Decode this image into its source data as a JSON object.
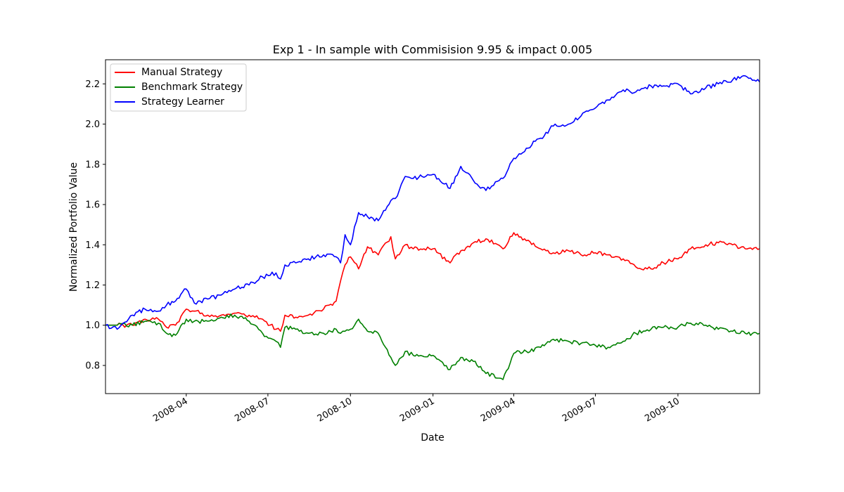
{
  "chart_data": {
    "type": "line",
    "title": "Exp 1 - In sample with Commisision 9.95 & impact 0.005",
    "xlabel": "Date",
    "ylabel": "Normalized Portfolio Value",
    "xlim": [
      "2008-01-02",
      "2009-12-31"
    ],
    "ylim": [
      0.66,
      2.32
    ],
    "yticks": [
      0.8,
      1.0,
      1.2,
      1.4,
      1.6,
      1.8,
      2.0,
      2.2
    ],
    "ytick_labels": [
      "0.8",
      "1.0",
      "1.2",
      "1.4",
      "1.6",
      "1.8",
      "2.0",
      "2.2"
    ],
    "xticks": [
      "2008-04-01",
      "2008-07-01",
      "2008-10-01",
      "2009-01-01",
      "2009-04-01",
      "2009-07-01",
      "2009-10-01"
    ],
    "xtick_labels": [
      "2008-04",
      "2008-07",
      "2008-10",
      "2009-01",
      "2009-04",
      "2009-07",
      "2009-10"
    ],
    "grid": false,
    "legend_position": "top-left",
    "series": [
      {
        "name": "Manual Strategy",
        "color": "#ff0000",
        "x": [
          "2008-01-02",
          "2008-01-15",
          "2008-02-01",
          "2008-02-15",
          "2008-03-01",
          "2008-03-10",
          "2008-03-20",
          "2008-04-01",
          "2008-04-10",
          "2008-04-25",
          "2008-05-10",
          "2008-05-25",
          "2008-06-10",
          "2008-06-25",
          "2008-07-10",
          "2008-07-15",
          "2008-07-20",
          "2008-08-01",
          "2008-08-15",
          "2008-09-01",
          "2008-09-15",
          "2008-09-20",
          "2008-09-25",
          "2008-10-01",
          "2008-10-10",
          "2008-10-20",
          "2008-11-01",
          "2008-11-15",
          "2008-11-20",
          "2008-12-01",
          "2008-12-10",
          "2009-01-01",
          "2009-01-20",
          "2009-02-01",
          "2009-02-15",
          "2009-03-01",
          "2009-03-20",
          "2009-04-01",
          "2009-04-15",
          "2009-05-01",
          "2009-05-15",
          "2009-06-01",
          "2009-06-15",
          "2009-07-01",
          "2009-07-15",
          "2009-08-01",
          "2009-08-15",
          "2009-09-01",
          "2009-09-15",
          "2009-10-01",
          "2009-10-15",
          "2009-11-01",
          "2009-11-15",
          "2009-12-01",
          "2009-12-15",
          "2009-12-31"
        ],
        "values": [
          1.0,
          1.0,
          1.0,
          1.03,
          1.03,
          0.99,
          1.0,
          1.08,
          1.07,
          1.05,
          1.05,
          1.06,
          1.05,
          1.03,
          0.98,
          0.97,
          1.05,
          1.04,
          1.05,
          1.08,
          1.12,
          1.22,
          1.3,
          1.34,
          1.28,
          1.39,
          1.35,
          1.44,
          1.33,
          1.4,
          1.38,
          1.38,
          1.31,
          1.37,
          1.41,
          1.43,
          1.38,
          1.46,
          1.42,
          1.38,
          1.36,
          1.37,
          1.35,
          1.36,
          1.35,
          1.33,
          1.29,
          1.28,
          1.31,
          1.33,
          1.38,
          1.4,
          1.41,
          1.4,
          1.38,
          1.38
        ]
      },
      {
        "name": "Benchmark Strategy",
        "color": "#008000",
        "x": [
          "2008-01-02",
          "2008-01-15",
          "2008-02-01",
          "2008-02-15",
          "2008-03-01",
          "2008-03-10",
          "2008-03-20",
          "2008-04-01",
          "2008-04-10",
          "2008-04-25",
          "2008-05-10",
          "2008-05-25",
          "2008-06-10",
          "2008-06-25",
          "2008-07-10",
          "2008-07-15",
          "2008-07-20",
          "2008-08-01",
          "2008-08-15",
          "2008-09-01",
          "2008-09-15",
          "2008-09-20",
          "2008-09-25",
          "2008-10-01",
          "2008-10-10",
          "2008-10-20",
          "2008-11-01",
          "2008-11-15",
          "2008-11-20",
          "2008-12-01",
          "2008-12-10",
          "2009-01-01",
          "2009-01-20",
          "2009-02-01",
          "2009-02-15",
          "2009-03-01",
          "2009-03-20",
          "2009-04-01",
          "2009-04-15",
          "2009-05-01",
          "2009-05-15",
          "2009-06-01",
          "2009-06-15",
          "2009-07-01",
          "2009-07-15",
          "2009-08-01",
          "2009-08-15",
          "2009-09-01",
          "2009-09-15",
          "2009-10-01",
          "2009-10-15",
          "2009-11-01",
          "2009-11-15",
          "2009-12-01",
          "2009-12-15",
          "2009-12-31"
        ],
        "values": [
          1.0,
          1.0,
          1.0,
          1.02,
          1.01,
          0.96,
          0.95,
          1.03,
          1.02,
          1.02,
          1.04,
          1.05,
          1.02,
          0.96,
          0.92,
          0.89,
          0.99,
          0.98,
          0.96,
          0.96,
          0.98,
          0.96,
          0.97,
          0.98,
          1.03,
          0.97,
          0.96,
          0.84,
          0.8,
          0.87,
          0.85,
          0.85,
          0.78,
          0.84,
          0.82,
          0.76,
          0.73,
          0.86,
          0.87,
          0.89,
          0.93,
          0.92,
          0.91,
          0.9,
          0.89,
          0.92,
          0.96,
          0.98,
          0.99,
          0.99,
          1.01,
          1.0,
          0.98,
          0.97,
          0.96,
          0.96
        ]
      },
      {
        "name": "Strategy Learner",
        "color": "#0000ff",
        "x": [
          "2008-01-02",
          "2008-01-15",
          "2008-02-01",
          "2008-02-15",
          "2008-03-01",
          "2008-03-10",
          "2008-03-20",
          "2008-04-01",
          "2008-04-10",
          "2008-04-25",
          "2008-05-10",
          "2008-05-25",
          "2008-06-10",
          "2008-06-25",
          "2008-07-10",
          "2008-07-15",
          "2008-07-20",
          "2008-08-01",
          "2008-08-15",
          "2008-09-01",
          "2008-09-15",
          "2008-09-20",
          "2008-09-25",
          "2008-10-01",
          "2008-10-10",
          "2008-10-20",
          "2008-11-01",
          "2008-11-15",
          "2008-11-20",
          "2008-12-01",
          "2008-12-10",
          "2009-01-01",
          "2009-01-20",
          "2009-02-01",
          "2009-02-15",
          "2009-03-01",
          "2009-03-20",
          "2009-04-01",
          "2009-04-15",
          "2009-05-01",
          "2009-05-15",
          "2009-06-01",
          "2009-06-15",
          "2009-07-01",
          "2009-07-15",
          "2009-08-01",
          "2009-08-15",
          "2009-09-01",
          "2009-09-15",
          "2009-10-01",
          "2009-10-15",
          "2009-11-01",
          "2009-11-15",
          "2009-12-01",
          "2009-12-15",
          "2009-12-31"
        ],
        "values": [
          1.0,
          0.98,
          1.05,
          1.08,
          1.07,
          1.1,
          1.12,
          1.18,
          1.11,
          1.13,
          1.15,
          1.18,
          1.2,
          1.24,
          1.26,
          1.23,
          1.3,
          1.31,
          1.33,
          1.35,
          1.34,
          1.31,
          1.45,
          1.4,
          1.56,
          1.54,
          1.52,
          1.62,
          1.63,
          1.74,
          1.73,
          1.75,
          1.68,
          1.79,
          1.72,
          1.67,
          1.73,
          1.83,
          1.88,
          1.93,
          1.99,
          2.0,
          2.04,
          2.08,
          2.12,
          2.17,
          2.16,
          2.19,
          2.19,
          2.2,
          2.15,
          2.18,
          2.2,
          2.22,
          2.24,
          2.21
        ]
      }
    ]
  }
}
